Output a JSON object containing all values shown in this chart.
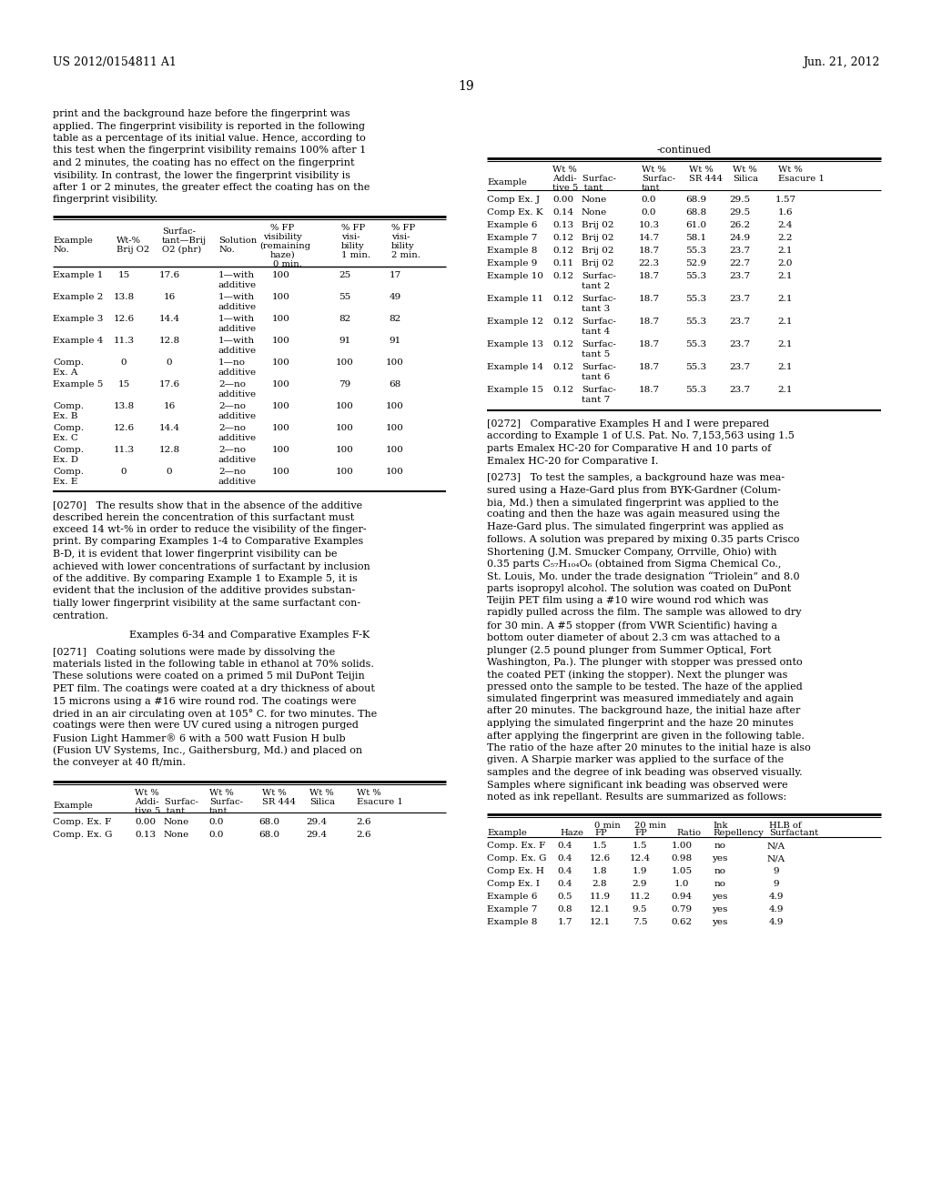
{
  "page_number": "19",
  "header_left": "US 2012/0154811 A1",
  "header_right": "Jun. 21, 2012",
  "background_color": "#ffffff",
  "text_color": "#000000",
  "left_paragraph_1": "print and the background haze before the fingerprint was\napplied. The fingerprint visibility is reported in the following\ntable as a percentage of its initial value. Hence, according to\nthis test when the fingerprint visibility remains 100% after 1\nand 2 minutes, the coating has no effect on the fingerprint\nvisibility. In contrast, the lower the fingerprint visibility is\nafter 1 or 2 minutes, the greater effect the coating has on the\nfingerprint visibility.",
  "paragraph_0270": "[0270]   The results show that in the absence of the additive\ndescribed herein the concentration of this surfactant must\nexceed 14 wt-% in order to reduce the visibility of the finger-\nprint. By comparing Examples 1-4 to Comparative Examples\nB-D, it is evident that lower fingerprint visibility can be\nachieved with lower concentrations of surfactant by inclusion\nof the additive. By comparing Example 1 to Example 5, it is\nevident that the inclusion of the additive provides substan-\ntially lower fingerprint visibility at the same surfactant con-\ncentration.",
  "section_title": "Examples 6-34 and Comparative Examples F-K",
  "paragraph_0271": "[0271]   Coating solutions were made by dissolving the\nmaterials listed in the following table in ethanol at 70% solids.\nThese solutions were coated on a primed 5 mil DuPont Teijin\nPET film. The coatings were coated at a dry thickness of about\n15 microns using a #16 wire round rod. The coatings were\ndried in an air circulating oven at 105° C. for two minutes. The\ncoatings were then were UV cured using a nitrogen purged\nFusion Light Hammer® 6 with a 500 watt Fusion H bulb\n(Fusion UV Systems, Inc., Gaithersburg, Md.) and placed on\nthe conveyer at 40 ft/min.",
  "paragraph_0272": "[0272]   Comparative Examples H and I were prepared\naccording to Example 1 of U.S. Pat. No. 7,153,563 using 1.5\nparts Emalex HC-20 for Comparative H and 10 parts of\nEmalex HC-20 for Comparative I.",
  "paragraph_0273_lines": [
    "[0273]   To test the samples, a background haze was mea-",
    "sured using a Haze-Gard plus from BYK-Gardner (Colum-",
    "bia, Md.) then a simulated fingerprint was applied to the",
    "coating and then the haze was again measured using the",
    "Haze-Gard plus. The simulated fingerprint was applied as",
    "follows. A solution was prepared by mixing 0.35 parts Crisco",
    "Shortening (J.M. Smucker Company, Orrville, Ohio) with",
    "0.35 parts C₅₇H₁₀₄O₆ (obtained from Sigma Chemical Co.,",
    "St. Louis, Mo. under the trade designation “Triolein” and 8.0",
    "parts isopropyl alcohol. The solution was coated on DuPont",
    "Teijin PET film using a #10 wire wound rod which was",
    "rapidly pulled across the film. The sample was allowed to dry",
    "for 30 min. A #5 stopper (from VWR Scientific) having a",
    "bottom outer diameter of about 2.3 cm was attached to a",
    "plunger (2.5 pound plunger from Summer Optical, Fort",
    "Washington, Pa.). The plunger with stopper was pressed onto",
    "the coated PET (inking the stopper). Next the plunger was",
    "pressed onto the sample to be tested. The haze of the applied",
    "simulated fingerprint was measured immediately and again",
    "after 20 minutes. The background haze, the initial haze after",
    "applying the simulated fingerprint and the haze 20 minutes",
    "after applying the fingerprint are given in the following table.",
    "The ratio of the haze after 20 minutes to the initial haze is also",
    "given. A Sharpie marker was applied to the surface of the",
    "samples and the degree of ink beading was observed visually.",
    "Samples where significant ink beading was observed were",
    "noted as ink repellant. Results are summarized as follows:"
  ]
}
